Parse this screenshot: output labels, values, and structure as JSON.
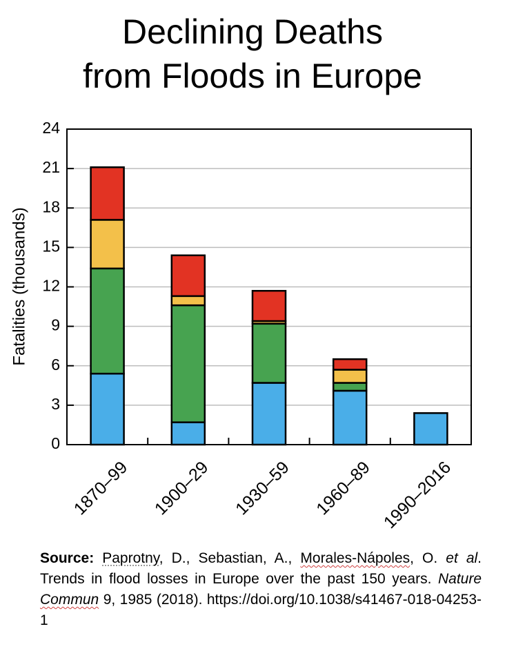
{
  "title": {
    "line1": "Declining Deaths",
    "line2": "from Floods in Europe"
  },
  "chart_data": {
    "type": "bar",
    "stacked": true,
    "categories": [
      "1870–99",
      "1900–29",
      "1930–59",
      "1960–89",
      "1990–2016"
    ],
    "series": [
      {
        "name": "blue",
        "color": "#4aaee8",
        "values": [
          5.4,
          1.7,
          4.7,
          4.1,
          2.4
        ]
      },
      {
        "name": "green",
        "color": "#47a350",
        "values": [
          8.0,
          8.9,
          4.5,
          0.6,
          0.0
        ]
      },
      {
        "name": "yellow",
        "color": "#f3c04a",
        "values": [
          3.7,
          0.7,
          0.2,
          1.0,
          0.0
        ]
      },
      {
        "name": "red",
        "color": "#e23323",
        "values": [
          4.0,
          3.1,
          2.3,
          0.8,
          0.0
        ]
      }
    ],
    "ylabel": "Fatalities (thousands)",
    "xlabel": "",
    "ylim": [
      0,
      24
    ],
    "yticks": [
      "0",
      "3",
      "6",
      "9",
      "12",
      "15",
      "18",
      "21",
      "24"
    ],
    "grid": true
  },
  "source": {
    "label": "Source:",
    "authors_1": "Paprotny",
    "authors_2": ", D., Sebastian, A.,",
    "authors_3": "Morales-Nápoles",
    "authors_4": ",",
    "authors_5": "O.",
    "etal": "et al",
    "text_1": ". Trends in flood losses in Europe over the past 150 years.",
    "journal_1": "Nature",
    "journal_2": "Commun",
    "text_2": "9, 1985 (2018). https://doi.org/10.1038/s41467-018-04253-1"
  }
}
